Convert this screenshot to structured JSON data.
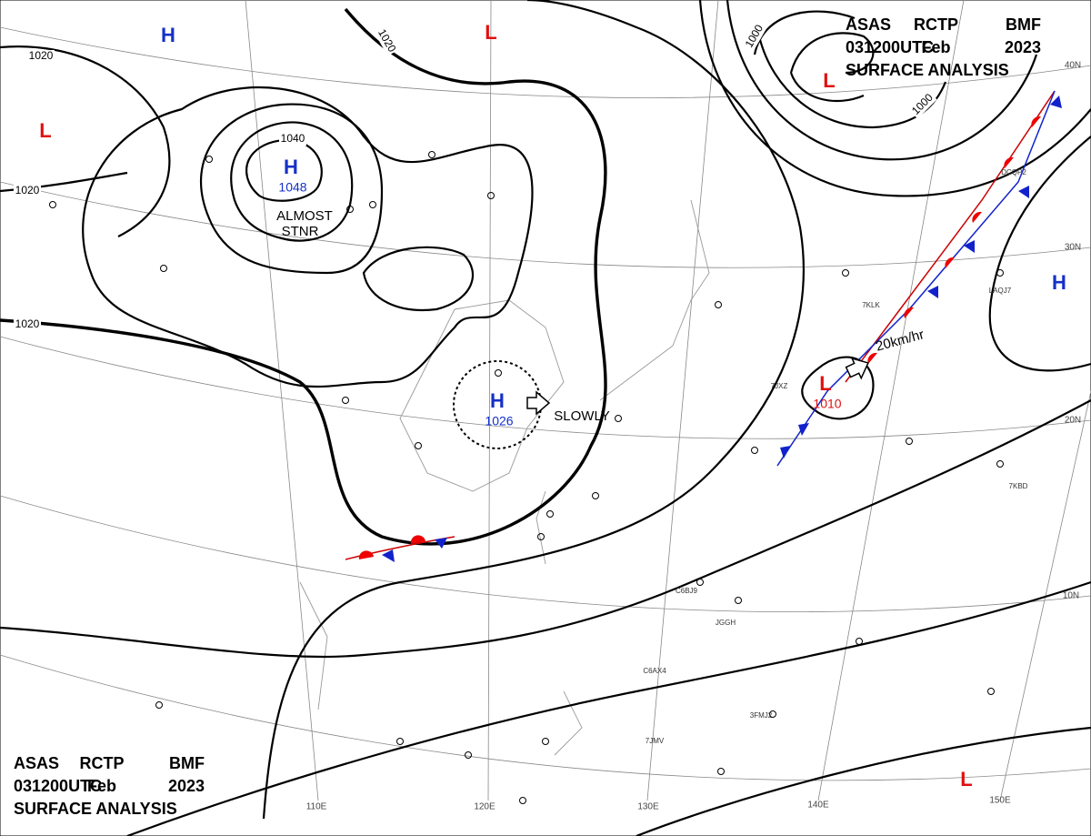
{
  "header_top": {
    "lines": [
      [
        "ASAS",
        "RCTP",
        "BMF"
      ],
      [
        "031200UTC",
        "Feb",
        "2023"
      ],
      [
        "SURFACE ANALYSIS"
      ]
    ]
  },
  "header_bottom": {
    "lines": [
      [
        "ASAS",
        "RCTP",
        "BMF"
      ],
      [
        "031200UTC",
        "Feb",
        "2023"
      ],
      [
        "SURFACE ANALYSIS"
      ]
    ]
  },
  "pressure_systems": [
    {
      "symbol": "H",
      "pressure": 1048
    },
    {
      "symbol": "H",
      "pressure": 1026
    },
    {
      "symbol": "L",
      "pressure": 1010
    },
    {
      "symbol": "H"
    },
    {
      "symbol": "L"
    },
    {
      "symbol": "L"
    },
    {
      "symbol": "L"
    },
    {
      "symbol": "H"
    },
    {
      "symbol": "L"
    }
  ],
  "isobar_labels": [
    1020,
    1020,
    1020,
    1020,
    1040,
    1000,
    1000
  ],
  "annotations": [
    "ALMOST",
    "STNR",
    "SLOWLY",
    "20km/hr"
  ],
  "latitude_labels": [
    "40N",
    "30N",
    "20N",
    "10N"
  ],
  "longitude_labels": [
    "110E",
    "120E",
    "130E",
    "140E",
    "150E"
  ],
  "ship_ids": [
    "7KLK",
    "7JXZ",
    "7KBD",
    "C6BJ9",
    "JGGH",
    "C6AX4",
    "7JMV",
    "3FMJ2",
    "DCQP2",
    "LAQJ7"
  ]
}
